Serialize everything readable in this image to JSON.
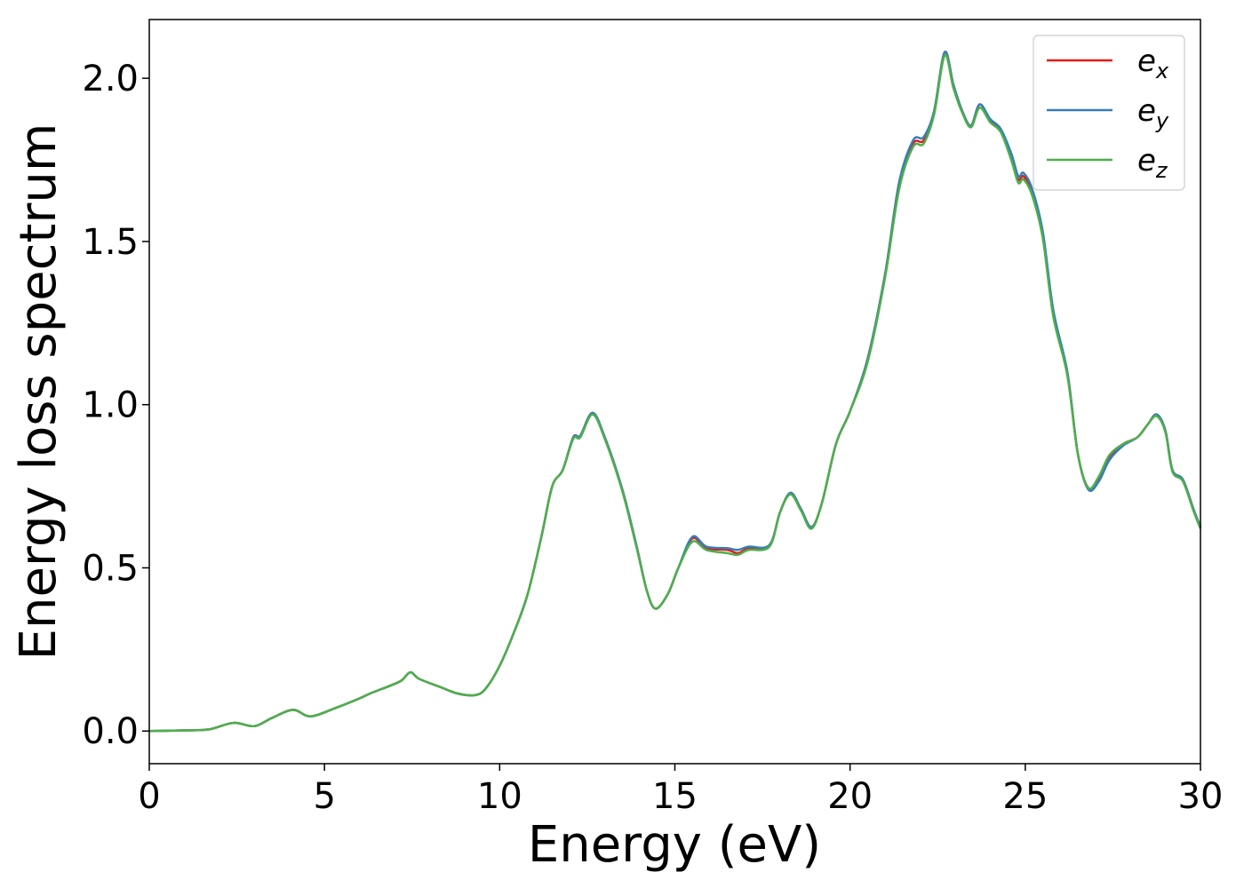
{
  "chart_data": {
    "type": "line",
    "xlabel": "Energy (eV)",
    "ylabel": "Energy loss spectrum",
    "xlim": [
      0,
      30
    ],
    "ylim": [
      -0.1,
      2.18
    ],
    "xticks": [
      0,
      5,
      10,
      15,
      20,
      25,
      30
    ],
    "yticks": [
      0.0,
      0.5,
      1.0,
      1.5,
      2.0
    ],
    "xtick_labels": [
      "0",
      "5",
      "10",
      "15",
      "20",
      "25",
      "30"
    ],
    "ytick_labels": [
      "0.0",
      "0.5",
      "1.0",
      "1.5",
      "2.0"
    ],
    "grid": false,
    "legend_position": "top-right",
    "series": [
      {
        "name": "e",
        "subscript": "x",
        "color": "#e41a1c",
        "points": [
          [
            0,
            0.0
          ],
          [
            1.0,
            0.002
          ],
          [
            1.7,
            0.005
          ],
          [
            2.4,
            0.025
          ],
          [
            3.0,
            0.015
          ],
          [
            3.5,
            0.04
          ],
          [
            4.1,
            0.065
          ],
          [
            4.6,
            0.045
          ],
          [
            5.3,
            0.07
          ],
          [
            6.0,
            0.1
          ],
          [
            6.3,
            0.115
          ],
          [
            6.9,
            0.14
          ],
          [
            7.2,
            0.155
          ],
          [
            7.45,
            0.18
          ],
          [
            7.7,
            0.16
          ],
          [
            8.3,
            0.135
          ],
          [
            8.8,
            0.115
          ],
          [
            9.3,
            0.11
          ],
          [
            9.6,
            0.13
          ],
          [
            10.0,
            0.2
          ],
          [
            10.4,
            0.3
          ],
          [
            10.8,
            0.42
          ],
          [
            11.2,
            0.6
          ],
          [
            11.5,
            0.75
          ],
          [
            11.8,
            0.8
          ],
          [
            12.1,
            0.9
          ],
          [
            12.3,
            0.905
          ],
          [
            12.65,
            0.975
          ],
          [
            13.0,
            0.9
          ],
          [
            13.5,
            0.74
          ],
          [
            13.9,
            0.57
          ],
          [
            14.2,
            0.43
          ],
          [
            14.45,
            0.375
          ],
          [
            14.8,
            0.42
          ],
          [
            15.1,
            0.5
          ],
          [
            15.5,
            0.59
          ],
          [
            15.9,
            0.56
          ],
          [
            16.5,
            0.555
          ],
          [
            16.8,
            0.545
          ],
          [
            17.1,
            0.56
          ],
          [
            17.7,
            0.57
          ],
          [
            18.0,
            0.67
          ],
          [
            18.3,
            0.73
          ],
          [
            18.6,
            0.68
          ],
          [
            18.9,
            0.625
          ],
          [
            19.2,
            0.7
          ],
          [
            19.6,
            0.88
          ],
          [
            20.0,
            0.98
          ],
          [
            20.5,
            1.14
          ],
          [
            21.0,
            1.4
          ],
          [
            21.4,
            1.68
          ],
          [
            21.8,
            1.8
          ],
          [
            22.1,
            1.81
          ],
          [
            22.4,
            1.9
          ],
          [
            22.7,
            2.08
          ],
          [
            22.95,
            1.98
          ],
          [
            23.2,
            1.9
          ],
          [
            23.45,
            1.855
          ],
          [
            23.7,
            1.92
          ],
          [
            24.0,
            1.87
          ],
          [
            24.3,
            1.84
          ],
          [
            24.6,
            1.76
          ],
          [
            24.8,
            1.69
          ],
          [
            24.95,
            1.7
          ],
          [
            25.2,
            1.65
          ],
          [
            25.5,
            1.52
          ],
          [
            25.8,
            1.28
          ],
          [
            26.2,
            1.1
          ],
          [
            26.5,
            0.85
          ],
          [
            26.8,
            0.745
          ],
          [
            27.1,
            0.775
          ],
          [
            27.4,
            0.84
          ],
          [
            27.8,
            0.88
          ],
          [
            28.2,
            0.9
          ],
          [
            28.5,
            0.94
          ],
          [
            28.75,
            0.97
          ],
          [
            29.0,
            0.92
          ],
          [
            29.2,
            0.8
          ],
          [
            29.5,
            0.77
          ],
          [
            29.8,
            0.68
          ],
          [
            30.0,
            0.625
          ]
        ]
      },
      {
        "name": "e",
        "subscript": "y",
        "color": "#377eb8",
        "points": [
          [
            0,
            0.0
          ],
          [
            1.0,
            0.002
          ],
          [
            1.7,
            0.005
          ],
          [
            2.4,
            0.025
          ],
          [
            3.0,
            0.015
          ],
          [
            3.5,
            0.04
          ],
          [
            4.1,
            0.065
          ],
          [
            4.6,
            0.045
          ],
          [
            5.3,
            0.07
          ],
          [
            6.0,
            0.1
          ],
          [
            6.3,
            0.115
          ],
          [
            6.9,
            0.14
          ],
          [
            7.2,
            0.155
          ],
          [
            7.45,
            0.18
          ],
          [
            7.7,
            0.16
          ],
          [
            8.3,
            0.135
          ],
          [
            8.8,
            0.115
          ],
          [
            9.3,
            0.11
          ],
          [
            9.6,
            0.13
          ],
          [
            10.0,
            0.2
          ],
          [
            10.4,
            0.3
          ],
          [
            10.8,
            0.42
          ],
          [
            11.2,
            0.6
          ],
          [
            11.5,
            0.75
          ],
          [
            11.8,
            0.8
          ],
          [
            12.1,
            0.9
          ],
          [
            12.3,
            0.905
          ],
          [
            12.65,
            0.975
          ],
          [
            13.0,
            0.9
          ],
          [
            13.5,
            0.74
          ],
          [
            13.9,
            0.57
          ],
          [
            14.2,
            0.43
          ],
          [
            14.45,
            0.375
          ],
          [
            14.8,
            0.42
          ],
          [
            15.1,
            0.5
          ],
          [
            15.5,
            0.595
          ],
          [
            15.9,
            0.565
          ],
          [
            16.5,
            0.56
          ],
          [
            16.8,
            0.555
          ],
          [
            17.1,
            0.565
          ],
          [
            17.7,
            0.57
          ],
          [
            18.0,
            0.67
          ],
          [
            18.3,
            0.73
          ],
          [
            18.6,
            0.68
          ],
          [
            18.9,
            0.625
          ],
          [
            19.2,
            0.7
          ],
          [
            19.6,
            0.88
          ],
          [
            20.0,
            0.98
          ],
          [
            20.5,
            1.14
          ],
          [
            21.0,
            1.4
          ],
          [
            21.4,
            1.68
          ],
          [
            21.8,
            1.81
          ],
          [
            22.1,
            1.82
          ],
          [
            22.4,
            1.9
          ],
          [
            22.7,
            2.08
          ],
          [
            22.95,
            1.98
          ],
          [
            23.2,
            1.9
          ],
          [
            23.45,
            1.855
          ],
          [
            23.7,
            1.92
          ],
          [
            24.0,
            1.875
          ],
          [
            24.3,
            1.845
          ],
          [
            24.6,
            1.77
          ],
          [
            24.8,
            1.7
          ],
          [
            24.95,
            1.71
          ],
          [
            25.2,
            1.66
          ],
          [
            25.5,
            1.53
          ],
          [
            25.8,
            1.29
          ],
          [
            26.2,
            1.1
          ],
          [
            26.5,
            0.85
          ],
          [
            26.8,
            0.74
          ],
          [
            27.1,
            0.765
          ],
          [
            27.4,
            0.83
          ],
          [
            27.8,
            0.875
          ],
          [
            28.2,
            0.9
          ],
          [
            28.5,
            0.94
          ],
          [
            28.75,
            0.97
          ],
          [
            29.0,
            0.92
          ],
          [
            29.2,
            0.8
          ],
          [
            29.5,
            0.77
          ],
          [
            29.8,
            0.68
          ],
          [
            30.0,
            0.625
          ]
        ]
      },
      {
        "name": "e",
        "subscript": "z",
        "color": "#4daf4a",
        "points": [
          [
            0,
            0.0
          ],
          [
            1.0,
            0.002
          ],
          [
            1.7,
            0.005
          ],
          [
            2.4,
            0.025
          ],
          [
            3.0,
            0.015
          ],
          [
            3.5,
            0.04
          ],
          [
            4.1,
            0.065
          ],
          [
            4.6,
            0.045
          ],
          [
            5.3,
            0.07
          ],
          [
            6.0,
            0.1
          ],
          [
            6.3,
            0.115
          ],
          [
            6.9,
            0.14
          ],
          [
            7.2,
            0.155
          ],
          [
            7.45,
            0.18
          ],
          [
            7.7,
            0.16
          ],
          [
            8.3,
            0.135
          ],
          [
            8.8,
            0.115
          ],
          [
            9.3,
            0.11
          ],
          [
            9.6,
            0.13
          ],
          [
            10.0,
            0.2
          ],
          [
            10.4,
            0.3
          ],
          [
            10.8,
            0.42
          ],
          [
            11.2,
            0.6
          ],
          [
            11.5,
            0.75
          ],
          [
            11.8,
            0.8
          ],
          [
            12.1,
            0.895
          ],
          [
            12.3,
            0.9
          ],
          [
            12.65,
            0.97
          ],
          [
            13.0,
            0.895
          ],
          [
            13.5,
            0.735
          ],
          [
            13.9,
            0.565
          ],
          [
            14.2,
            0.43
          ],
          [
            14.45,
            0.375
          ],
          [
            14.8,
            0.42
          ],
          [
            15.1,
            0.5
          ],
          [
            15.5,
            0.58
          ],
          [
            15.9,
            0.555
          ],
          [
            16.5,
            0.545
          ],
          [
            16.8,
            0.54
          ],
          [
            17.1,
            0.555
          ],
          [
            17.7,
            0.565
          ],
          [
            18.0,
            0.67
          ],
          [
            18.3,
            0.725
          ],
          [
            18.6,
            0.675
          ],
          [
            18.9,
            0.62
          ],
          [
            19.2,
            0.7
          ],
          [
            19.6,
            0.88
          ],
          [
            20.0,
            0.98
          ],
          [
            20.5,
            1.13
          ],
          [
            21.0,
            1.39
          ],
          [
            21.4,
            1.66
          ],
          [
            21.8,
            1.79
          ],
          [
            22.1,
            1.8
          ],
          [
            22.4,
            1.89
          ],
          [
            22.7,
            2.07
          ],
          [
            22.95,
            1.97
          ],
          [
            23.2,
            1.895
          ],
          [
            23.45,
            1.85
          ],
          [
            23.7,
            1.91
          ],
          [
            24.0,
            1.865
          ],
          [
            24.3,
            1.835
          ],
          [
            24.6,
            1.75
          ],
          [
            24.8,
            1.68
          ],
          [
            24.95,
            1.69
          ],
          [
            25.2,
            1.64
          ],
          [
            25.5,
            1.51
          ],
          [
            25.8,
            1.27
          ],
          [
            26.2,
            1.09
          ],
          [
            26.5,
            0.85
          ],
          [
            26.8,
            0.745
          ],
          [
            27.1,
            0.78
          ],
          [
            27.4,
            0.845
          ],
          [
            27.8,
            0.88
          ],
          [
            28.2,
            0.9
          ],
          [
            28.5,
            0.94
          ],
          [
            28.75,
            0.965
          ],
          [
            29.0,
            0.915
          ],
          [
            29.2,
            0.795
          ],
          [
            29.5,
            0.765
          ],
          [
            29.8,
            0.675
          ],
          [
            30.0,
            0.62
          ]
        ]
      }
    ]
  }
}
